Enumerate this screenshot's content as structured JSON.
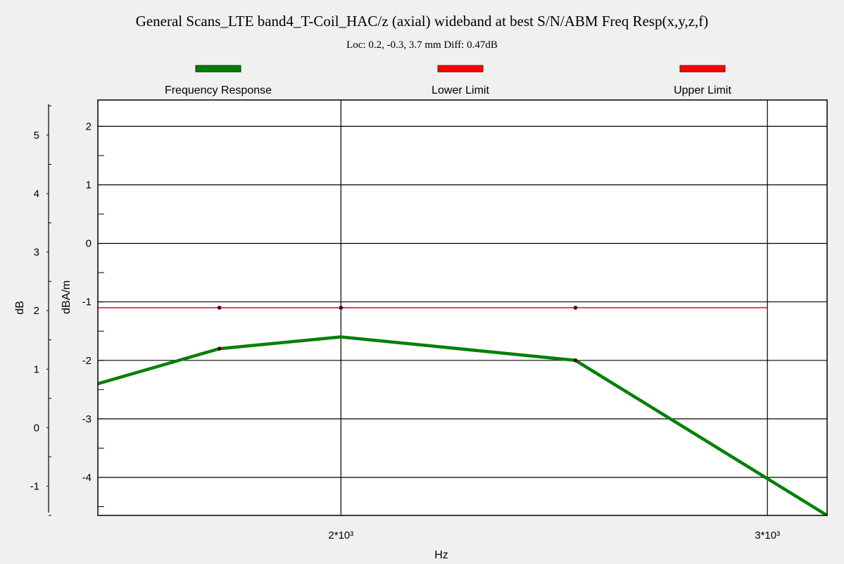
{
  "chart_data": {
    "type": "line",
    "title": "General Scans_LTE band4_T-Coil_HAC/z (axial) wideband at best S/N/ABM Freq Resp(x,y,z,f)",
    "subtitle": "Loc: 0.2, -0.3, 3.7 mm Diff: 0.47dB",
    "xlabel": "Hz",
    "ylabel_outer": "dB",
    "ylabel_inner": "dBA/m",
    "xlim": [
      1430,
      3140
    ],
    "ylim_inner": [
      -4.65,
      2.45
    ],
    "ylim_outer": [
      -1.5,
      5.6
    ],
    "x_ticks": [
      {
        "value": 2000,
        "label": "2*10³"
      },
      {
        "value": 3000,
        "label": "3*10³"
      }
    ],
    "y_ticks_inner": [
      {
        "value": 2,
        "label": "2"
      },
      {
        "value": 1,
        "label": "1"
      },
      {
        "value": 0,
        "label": "0"
      },
      {
        "value": -1,
        "label": "-1"
      },
      {
        "value": -2,
        "label": "-2"
      },
      {
        "value": -3,
        "label": "-3"
      },
      {
        "value": -4,
        "label": "-4"
      }
    ],
    "y_ticks_outer": [
      {
        "value": 5,
        "label": "5"
      },
      {
        "value": 4,
        "label": "4"
      },
      {
        "value": 3,
        "label": "3"
      },
      {
        "value": 2,
        "label": "2"
      },
      {
        "value": 1,
        "label": "1"
      },
      {
        "value": 0,
        "label": "0"
      },
      {
        "value": -1,
        "label": "-1"
      }
    ],
    "grid": true,
    "legend_placement": "top",
    "series": [
      {
        "name": "Frequency Response",
        "color": "#008000",
        "x": [
          1430,
          1715,
          2000,
          2550,
          3140
        ],
        "y": [
          -2.4,
          -1.8,
          -1.6,
          -2.0,
          -4.65
        ]
      },
      {
        "name": "Lower Limit",
        "color": "#ff0000",
        "x": [
          1430,
          1715,
          2000,
          2550,
          3000
        ],
        "y": [
          -1.1,
          -1.1,
          -1.1,
          -1.1,
          -1.1
        ]
      },
      {
        "name": "Upper Limit",
        "color": "#ff0000",
        "x": [],
        "y": []
      }
    ],
    "markers": [
      {
        "x": 1715,
        "y": -1.1
      },
      {
        "x": 2000,
        "y": -1.1
      },
      {
        "x": 2550,
        "y": -1.1
      },
      {
        "x": 1715,
        "y": -1.8
      },
      {
        "x": 2550,
        "y": -2.0
      }
    ]
  }
}
